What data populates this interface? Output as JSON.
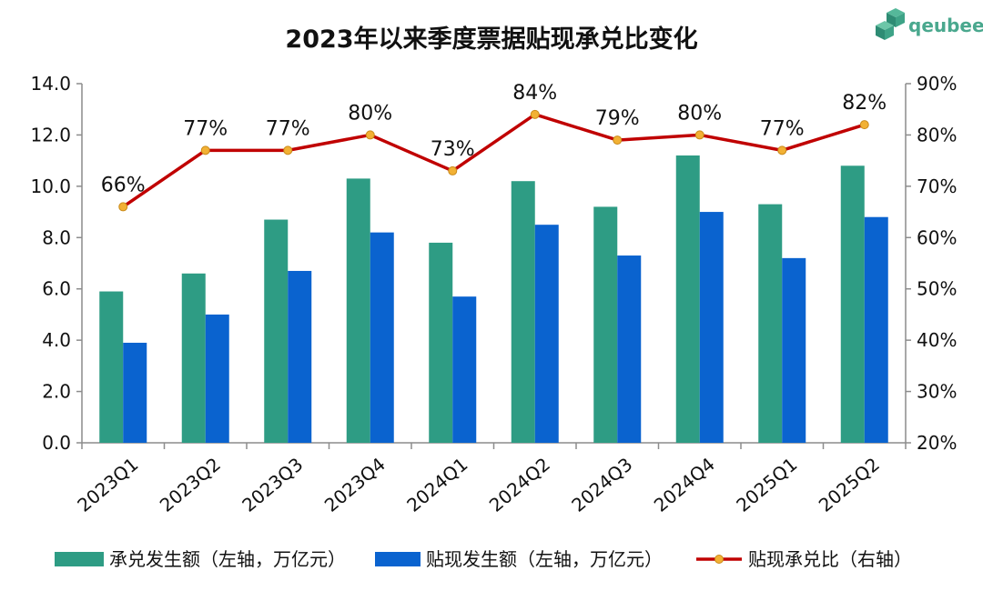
{
  "logo": {
    "text": "qeubee",
    "icon": "cube-cluster-icon"
  },
  "chart_data": {
    "type": "bar",
    "title": "2023年以来季度票据贴现承兑比变化",
    "categories": [
      "2023Q1",
      "2023Q2",
      "2023Q3",
      "2023Q4",
      "2024Q1",
      "2024Q2",
      "2024Q3",
      "2024Q4",
      "2025Q1",
      "2025Q2"
    ],
    "series": [
      {
        "name": "承兑发生额（左轴，万亿元）",
        "type": "bar",
        "axis": "left",
        "color": "#2e9c84",
        "values": [
          5.9,
          6.6,
          8.7,
          10.3,
          7.8,
          10.2,
          9.2,
          11.2,
          9.3,
          10.8
        ]
      },
      {
        "name": "贴现发生额（左轴，万亿元）",
        "type": "bar",
        "axis": "left",
        "color": "#0a63cf",
        "values": [
          3.9,
          5.0,
          6.7,
          8.2,
          5.7,
          8.5,
          7.3,
          9.0,
          7.2,
          8.8
        ]
      },
      {
        "name": "贴现承兑比（右轴）",
        "type": "line",
        "axis": "right",
        "color": "#c00000",
        "marker_color": "#f2b134",
        "values": [
          66,
          77,
          77,
          80,
          73,
          84,
          79,
          80,
          77,
          82
        ],
        "labels": [
          "66%",
          "77%",
          "77%",
          "80%",
          "73%",
          "84%",
          "79%",
          "80%",
          "77%",
          "82%"
        ]
      }
    ],
    "y_left": {
      "min": 0,
      "max": 14,
      "step": 2,
      "ticks": [
        "0.0",
        "2.0",
        "4.0",
        "6.0",
        "8.0",
        "10.0",
        "12.0",
        "14.0"
      ]
    },
    "y_right": {
      "min": 20,
      "max": 90,
      "step": 10,
      "ticks": [
        "20%",
        "30%",
        "40%",
        "50%",
        "60%",
        "70%",
        "80%",
        "90%"
      ]
    },
    "grid": false,
    "legend_position": "bottom"
  }
}
